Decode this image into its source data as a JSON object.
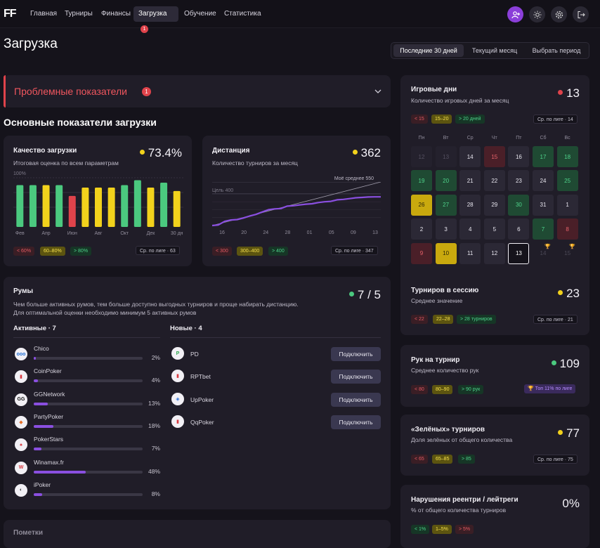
{
  "app": {
    "logo": "FF"
  },
  "nav": [
    {
      "label": "Главная"
    },
    {
      "label": "Турниры"
    },
    {
      "label": "Финансы"
    },
    {
      "label": "Загрузка",
      "badge": "1"
    },
    {
      "label": "Обучение"
    },
    {
      "label": "Статистика"
    }
  ],
  "page": {
    "title": "Загрузка"
  },
  "period": {
    "options": [
      "Последние 30 дней",
      "Текущий месяц",
      "Выбрать период"
    ],
    "selected": "Последние 30 дней"
  },
  "problems": {
    "title": "Проблемные показатели",
    "count": "1"
  },
  "main_section": {
    "title": "Основные показатели загрузки"
  },
  "quality": {
    "title": "Качество загрузки",
    "subtitle": "Итоговая оценка по всем параметрам",
    "value": "73.4%",
    "y_top": "100%",
    "tags": [
      "< 60%",
      "60–80%",
      "> 80%"
    ],
    "league": "Ср. по лиге · 63",
    "chart_data": {
      "type": "bar",
      "categories": [
        "Фев",
        "",
        "Апр",
        "",
        "Июн",
        "",
        "Авг",
        "",
        "Окт",
        "",
        "Дек",
        "",
        "30 дн"
      ],
      "tick_labels": [
        "Фев",
        "Апр",
        "Июн",
        "Авг",
        "Окт",
        "Дек",
        "30 дн"
      ],
      "values": [
        85,
        85,
        85,
        85,
        63,
        80,
        80,
        80,
        85,
        95,
        80,
        90,
        73
      ],
      "colors": [
        "#4bc97f",
        "#4bc97f",
        "#f2d21c",
        "#4bc97f",
        "#e0434b",
        "#f2d21c",
        "#f2d21c",
        "#f2d21c",
        "#4bc97f",
        "#4bc97f",
        "#f2d21c",
        "#4bc97f",
        "#f2d21c"
      ],
      "ylim": [
        0,
        100
      ]
    }
  },
  "distance": {
    "title": "Дистанция",
    "subtitle": "Количество турниров за месяц",
    "value": "362",
    "avg_label": "Моё среднее 550",
    "goal_label": "Цель 400",
    "tags": [
      "< 300",
      "300–400",
      "> 400"
    ],
    "league": "Ср. по лиге · 347",
    "chart_data": {
      "type": "line",
      "x_ticks": [
        "16",
        "20",
        "24",
        "28",
        "01",
        "05",
        "09",
        "13"
      ],
      "series": [
        {
          "values": [
            0,
            8,
            52,
            70,
            75,
            95,
            120,
            140,
            170,
            200,
            210,
            215,
            245,
            250,
            260,
            270,
            275,
            290,
            300,
            305,
            325,
            330,
            340,
            350,
            355,
            360,
            362,
            362
          ]
        }
      ],
      "avg_line": 550,
      "goal_line": 400,
      "ylim": [
        0,
        550
      ]
    }
  },
  "rooms": {
    "title": "Румы",
    "value": "7 / 5",
    "desc1": "Чем больше активных румов, тем больше доступно выгодных турниров и проще набирать дистанцию.",
    "desc2": "Для оптимальной оценки необходимо минимум 5 активных румов",
    "active_title": "Активные · 7",
    "new_title": "Новые · 4",
    "active": [
      {
        "name": "Chico",
        "pct": "2%",
        "value": 2,
        "logo": "ooo",
        "logo_color": "#1f6fd6"
      },
      {
        "name": "CoinPoker",
        "pct": "4%",
        "value": 4,
        "logo": "▮",
        "logo_color": "#d8383f"
      },
      {
        "name": "GGNetwork",
        "pct": "13%",
        "value": 13,
        "logo": "GG",
        "logo_color": "#111111"
      },
      {
        "name": "PartyPoker",
        "pct": "18%",
        "value": 18,
        "logo": "◆",
        "logo_color": "#e8702a"
      },
      {
        "name": "PokerStars",
        "pct": "7%",
        "value": 7,
        "logo": "♠",
        "logo_color": "#d8383f"
      },
      {
        "name": "Winamax.fr",
        "pct": "48%",
        "value": 48,
        "logo": "W",
        "logo_color": "#d8383f"
      },
      {
        "name": "iPoker",
        "pct": "8%",
        "value": 8,
        "logo": "◐",
        "logo_color": "#444444"
      }
    ],
    "new": [
      {
        "name": "PD",
        "logo": "P",
        "logo_color": "#2fa84f"
      },
      {
        "name": "RPTbet",
        "logo": "▮",
        "logo_color": "#d8383f"
      },
      {
        "name": "UpPoker",
        "logo": "◈",
        "logo_color": "#2a6fd6"
      },
      {
        "name": "QqPoker",
        "logo": "▮",
        "logo_color": "#d8383f"
      }
    ],
    "connect_label": "Подключить"
  },
  "next_section": {
    "title": "Пометки"
  },
  "game_days": {
    "title": "Игровые дни",
    "subtitle": "Количество игровых дней за месяц",
    "value": "13",
    "tags": [
      "< 15",
      "15–20",
      "> 20 дней"
    ],
    "league": "Ср. по лиге · 14",
    "weekdays": [
      "Пн",
      "Вт",
      "Ср",
      "Чт",
      "Пт",
      "Сб",
      "Вс"
    ],
    "cells": [
      {
        "d": "12",
        "s": "faint"
      },
      {
        "d": "13",
        "s": "faint"
      },
      {
        "d": "14",
        "s": "neutral"
      },
      {
        "d": "15",
        "s": "red"
      },
      {
        "d": "16",
        "s": "neutral"
      },
      {
        "d": "17",
        "s": "green"
      },
      {
        "d": "18",
        "s": "green"
      },
      {
        "d": "19",
        "s": "green"
      },
      {
        "d": "20",
        "s": "green"
      },
      {
        "d": "21",
        "s": "neutral"
      },
      {
        "d": "22",
        "s": "neutral"
      },
      {
        "d": "23",
        "s": "neutral"
      },
      {
        "d": "24",
        "s": "neutral"
      },
      {
        "d": "25",
        "s": "green"
      },
      {
        "d": "26",
        "s": "yellow"
      },
      {
        "d": "27",
        "s": "green"
      },
      {
        "d": "28",
        "s": "neutral"
      },
      {
        "d": "29",
        "s": "neutral"
      },
      {
        "d": "30",
        "s": "green"
      },
      {
        "d": "31",
        "s": "neutral"
      },
      {
        "d": "1",
        "s": "neutral"
      },
      {
        "d": "2",
        "s": "neutral"
      },
      {
        "d": "3",
        "s": "neutral"
      },
      {
        "d": "4",
        "s": "neutral"
      },
      {
        "d": "5",
        "s": "neutral"
      },
      {
        "d": "6",
        "s": "neutral"
      },
      {
        "d": "7",
        "s": "green"
      },
      {
        "d": "8",
        "s": "red"
      },
      {
        "d": "9",
        "s": "red"
      },
      {
        "d": "10",
        "s": "yellow"
      },
      {
        "d": "11",
        "s": "neutral"
      },
      {
        "d": "12",
        "s": "neutral"
      },
      {
        "d": "13",
        "s": "today"
      },
      {
        "d": "14",
        "s": "empty"
      },
      {
        "d": "15",
        "s": "empty"
      }
    ]
  },
  "session": {
    "title": "Турниров в сессию",
    "subtitle": "Среднее значение",
    "value": "23",
    "tags": [
      "< 22",
      "22–28",
      "> 28 турниров"
    ],
    "league": "Ср. по лиге · 21"
  },
  "hands": {
    "title": "Рук на турнир",
    "subtitle": "Среднее количество рук",
    "value": "109",
    "tags": [
      "< 80",
      "80–90",
      "> 90 рук"
    ],
    "league": "🏆 Топ 11% по лиге"
  },
  "green": {
    "title": "«Зелёных» турниров",
    "subtitle": "Доля зелёных от общего количества",
    "value": "77",
    "tags": [
      "< 65",
      "65–85",
      "> 85"
    ],
    "league": "Ср. по лиге · 75"
  },
  "reentry": {
    "title": "Нарушения реентри / лейтреги",
    "subtitle": "% от общего количества турниров",
    "value": "0%",
    "tags": [
      "< 1%",
      "1–5%",
      "> 5%"
    ]
  },
  "colors": {
    "green": "#4bc97f",
    "yellow": "#f2d21c",
    "red": "#e0434b",
    "purple": "#8a4fe0",
    "accent": "#8b3fd9"
  }
}
